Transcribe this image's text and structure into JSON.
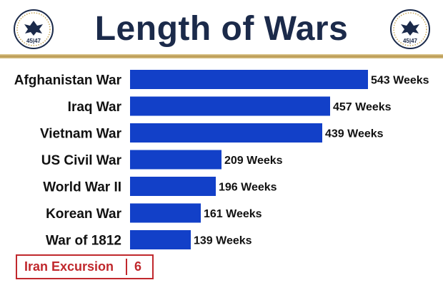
{
  "header": {
    "title": "Length of Wars",
    "seal_left_text": "45|47",
    "seal_right_text": "45|47"
  },
  "colors": {
    "bar": "#1240c8",
    "title": "#1b2a4a",
    "callout": "#c0282d",
    "rule": "#b8974e"
  },
  "chart_data": {
    "type": "bar",
    "orientation": "horizontal",
    "title": "Length of Wars",
    "categories": [
      "Afghanistan War",
      "Iraq War",
      "Vietnam War",
      "US Civil War",
      "World War II",
      "Korean War",
      "War of 1812"
    ],
    "values": [
      543,
      457,
      439,
      209,
      196,
      161,
      139
    ],
    "value_labels": [
      "543 Weeks",
      "457 Weeks",
      "439 Weeks",
      "209 Weeks",
      "196 Weeks",
      "161 Weeks",
      "139 Weeks"
    ],
    "unit": "Weeks",
    "xlim": [
      0,
      543
    ],
    "grid": false,
    "legend": "none"
  },
  "callout": {
    "label": "Iran Excursion",
    "value": "6"
  }
}
